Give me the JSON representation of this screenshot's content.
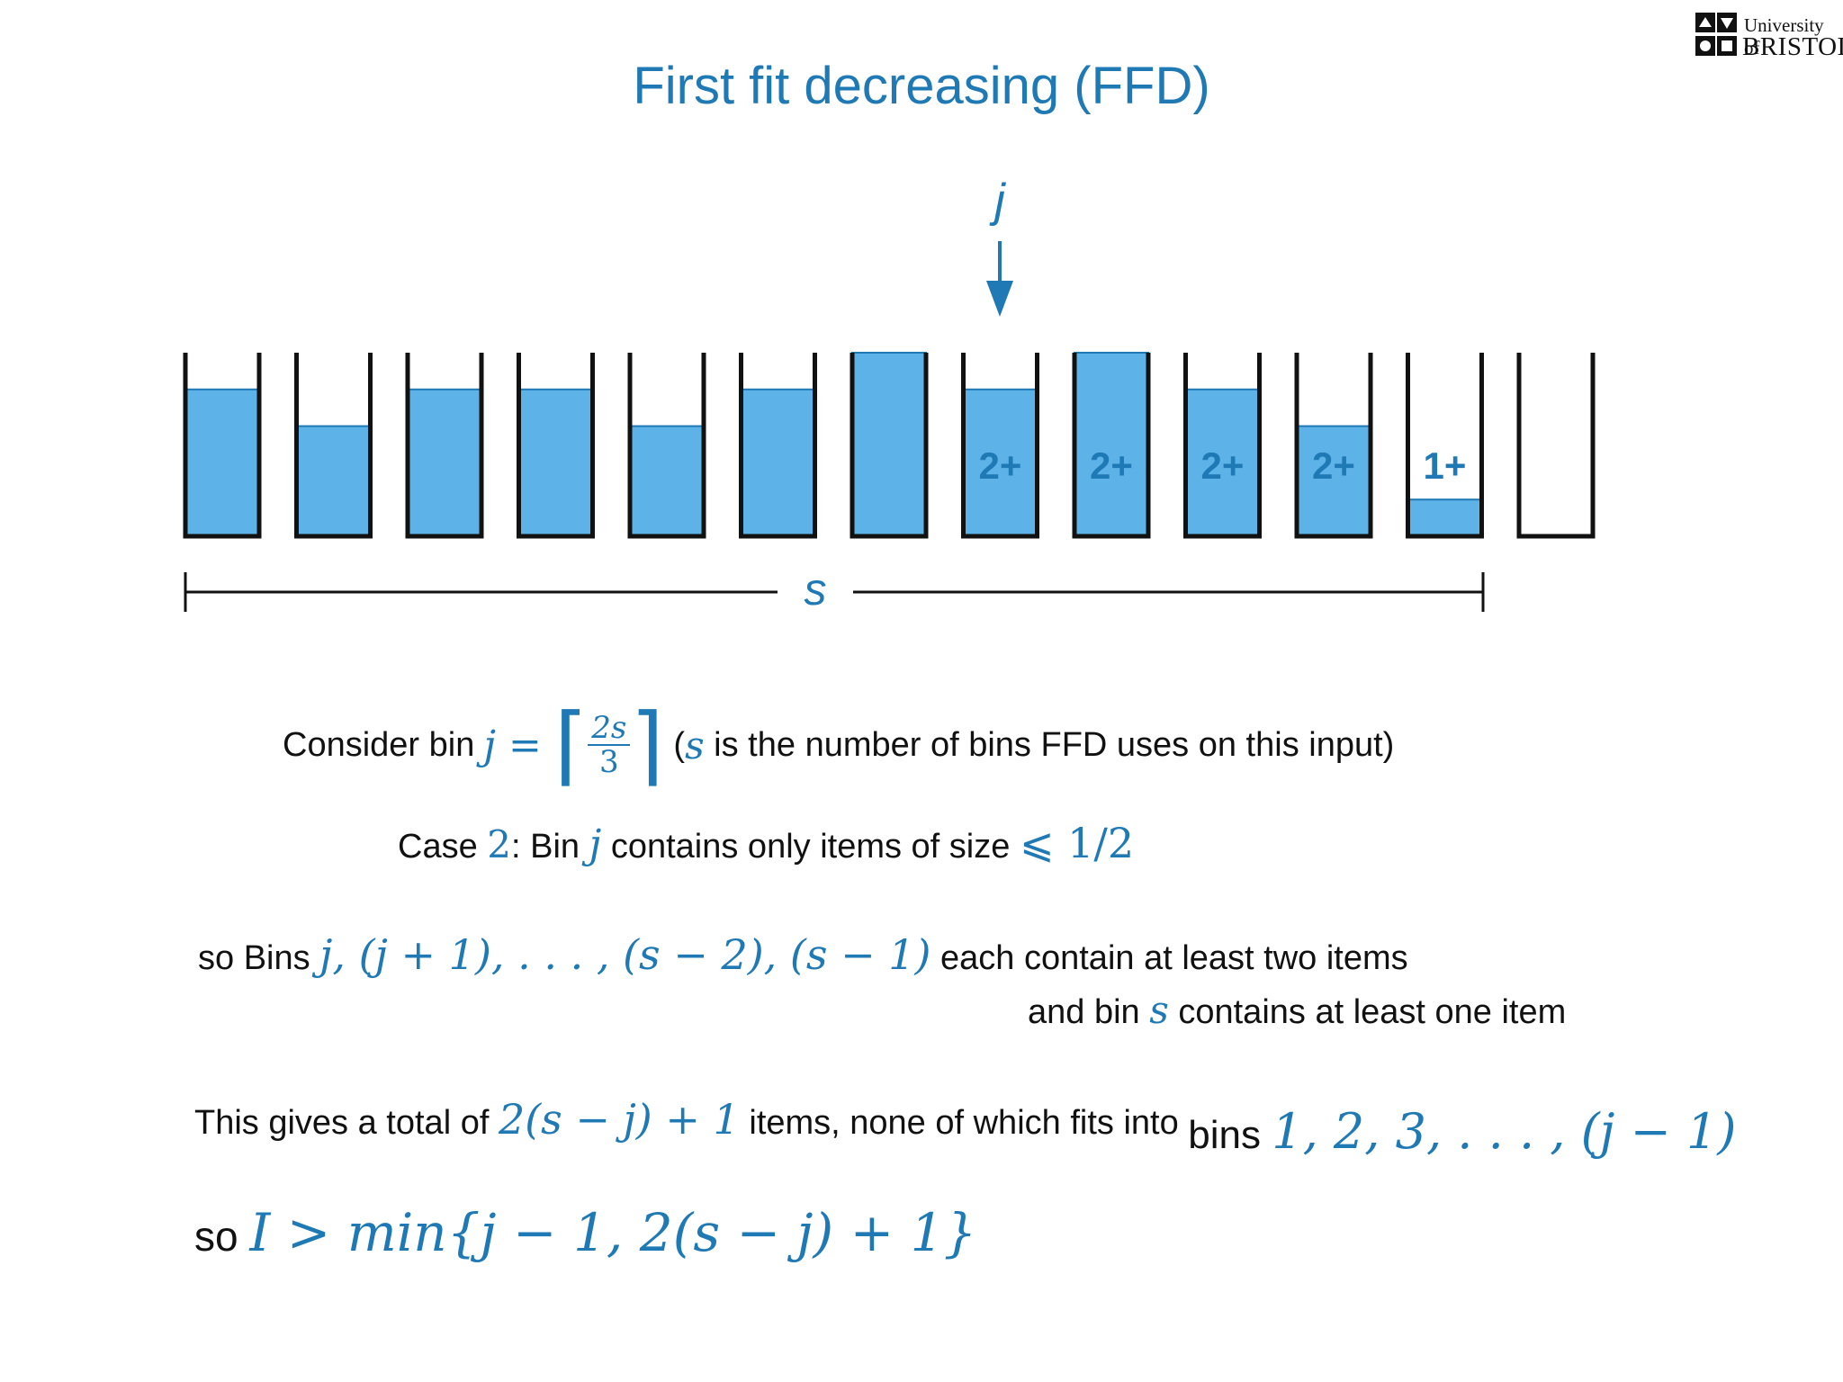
{
  "title": "First fit decreasing (FFD)",
  "logo": {
    "line1": "University of",
    "line2": "BRISTOL"
  },
  "diagram": {
    "pointer_label": "j",
    "bins": [
      {
        "fill": 0.8,
        "label": ""
      },
      {
        "fill": 0.6,
        "label": ""
      },
      {
        "fill": 0.8,
        "label": ""
      },
      {
        "fill": 0.8,
        "label": ""
      },
      {
        "fill": 0.6,
        "label": ""
      },
      {
        "fill": 0.8,
        "label": ""
      },
      {
        "fill": 1.0,
        "label": ""
      },
      {
        "fill": 0.8,
        "label": "2+"
      },
      {
        "fill": 1.0,
        "label": "2+"
      },
      {
        "fill": 0.8,
        "label": "2+"
      },
      {
        "fill": 0.6,
        "label": "2+"
      },
      {
        "fill": 0.2,
        "label": "1+"
      },
      {
        "fill": 0.0,
        "label": ""
      }
    ],
    "span_label": "s",
    "colors": {
      "fill": "#5db3e8",
      "accent": "#1f79b5",
      "outline": "#111111"
    }
  },
  "lines": {
    "consider": {
      "prefix": "Consider bin ",
      "var": "j",
      "eq": " = ",
      "frac_num": "2s",
      "frac_den": "3",
      "paren_open": " (",
      "paren_var": "s",
      "suffix": " is the number of bins FFD uses on this input)"
    },
    "case": {
      "prefix": "Case ",
      "num": "2",
      "mid1": ": Bin ",
      "var": "j",
      "mid2": " contains only items of size ",
      "math": "⩽ 1/2"
    },
    "bins_line": {
      "prefix": "so Bins ",
      "math": "j, (j + 1), . . . , (s − 2), (s − 1)",
      "suffix": " each contain at least two items"
    },
    "bin_s_line": {
      "prefix": "and bin ",
      "var": "s",
      "suffix": " contains at least one item"
    },
    "total_line": {
      "prefix": "This gives a total of ",
      "math": "2(s − j) + 1",
      "mid": " items, none of which fits into ",
      "bins_word": "bins ",
      "math2": "1, 2, 3, . . . , (j − 1)"
    },
    "conclusion": {
      "prefix": "so ",
      "math": "I > min{j − 1, 2(s − j) + 1}"
    }
  }
}
